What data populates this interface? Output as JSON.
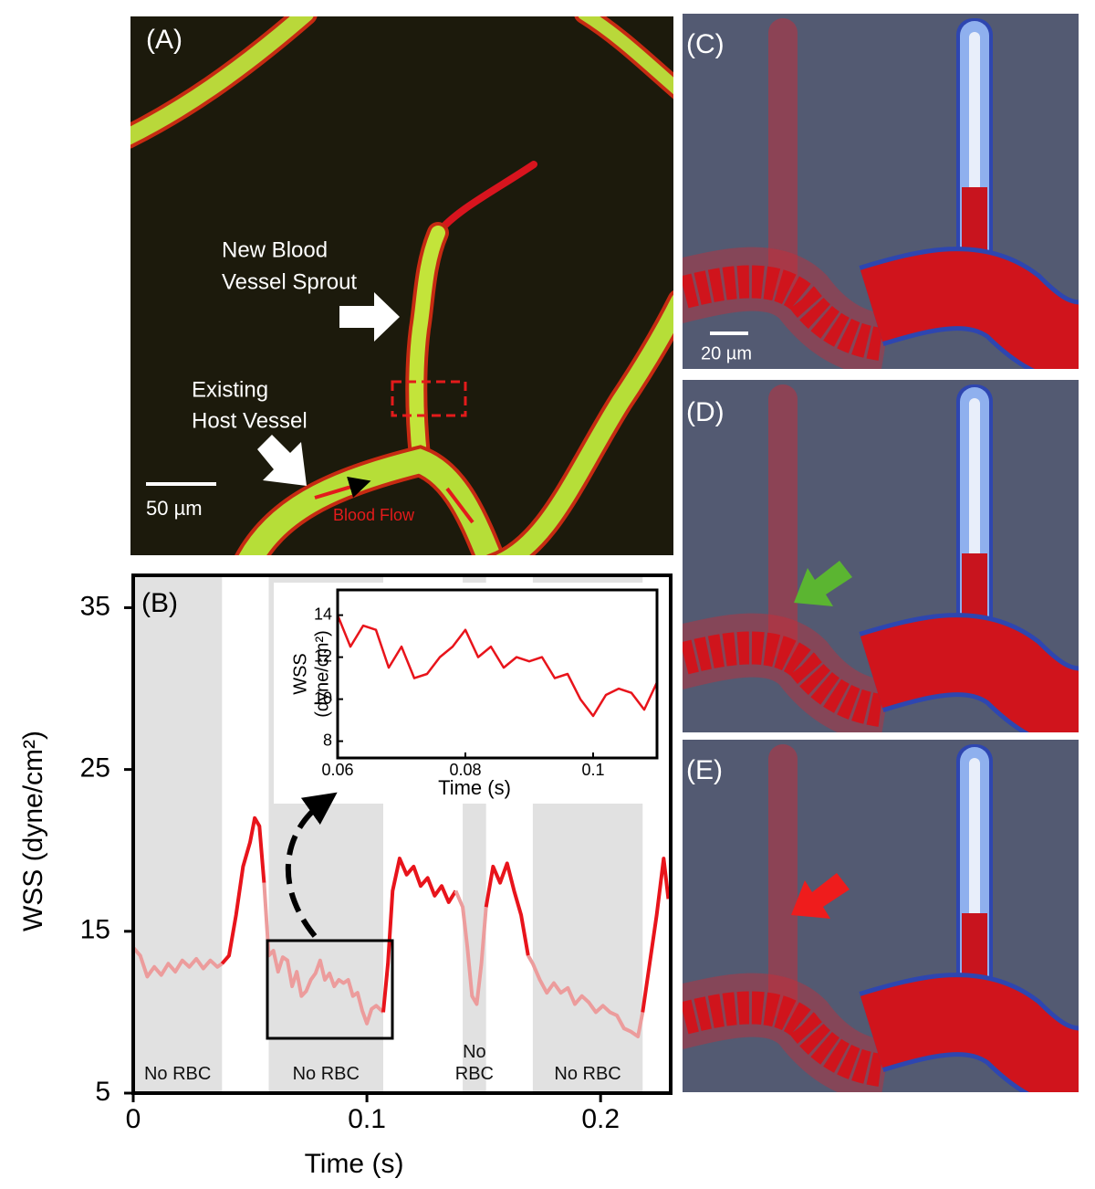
{
  "panel_a": {
    "label": "(A)",
    "sprout_label": [
      "New  Blood",
      "Vessel Sprout"
    ],
    "host_label": [
      "Existing",
      "Host Vessel"
    ],
    "scale_bar": "50 µm",
    "flow_label": "Blood Flow"
  },
  "chart_data": [
    {
      "type": "line",
      "title": "(B)",
      "xlabel": "Time (s)",
      "ylabel": "WSS (dyne/cm²)",
      "x": [
        0,
        0.003,
        0.006,
        0.009,
        0.012,
        0.015,
        0.018,
        0.021,
        0.024,
        0.027,
        0.03,
        0.033,
        0.036,
        0.038,
        0.041,
        0.044,
        0.047,
        0.05,
        0.052,
        0.054,
        0.056,
        0.058,
        0.06,
        0.062,
        0.064,
        0.066,
        0.068,
        0.07,
        0.072,
        0.074,
        0.076,
        0.078,
        0.08,
        0.082,
        0.084,
        0.086,
        0.088,
        0.09,
        0.092,
        0.094,
        0.096,
        0.098,
        0.1,
        0.102,
        0.104,
        0.107,
        0.109,
        0.111,
        0.114,
        0.117,
        0.12,
        0.123,
        0.126,
        0.129,
        0.132,
        0.135,
        0.138,
        0.141,
        0.143,
        0.145,
        0.147,
        0.149,
        0.151,
        0.154,
        0.157,
        0.16,
        0.163,
        0.166,
        0.169,
        0.171,
        0.174,
        0.177,
        0.18,
        0.183,
        0.186,
        0.189,
        0.192,
        0.195,
        0.198,
        0.201,
        0.204,
        0.207,
        0.21,
        0.213,
        0.216,
        0.218,
        0.221,
        0.224,
        0.227,
        0.229
      ],
      "values": [
        14,
        13.5,
        12.2,
        12.8,
        12.3,
        13,
        12.5,
        13.2,
        12.8,
        13.3,
        12.7,
        13.2,
        12.8,
        13,
        13.5,
        16,
        19,
        20.5,
        22,
        21.5,
        18,
        13.5,
        13.8,
        12.5,
        13.4,
        13.2,
        11.6,
        12.5,
        11,
        11.3,
        12,
        12.4,
        13.2,
        12,
        12.4,
        11.6,
        12,
        11.8,
        12,
        11,
        11.2,
        10.1,
        9.3,
        10.2,
        10.4,
        10,
        13,
        17.5,
        19.5,
        18.5,
        19,
        17.8,
        18.3,
        17.2,
        17.8,
        16.8,
        17.5,
        16.5,
        14,
        11,
        10.5,
        13,
        16.5,
        19,
        18,
        19.2,
        17.5,
        16,
        13.5,
        13,
        12,
        11.2,
        11.8,
        11.2,
        11.5,
        10.5,
        11,
        10.6,
        10,
        10.4,
        10,
        9.8,
        9,
        8.8,
        8.5,
        10,
        13,
        16,
        19.5,
        17
      ],
      "color": "#e8141b",
      "region_color": "#ec9c9c",
      "region_fill": "#e1e1e1",
      "regions": [
        {
          "start": 0,
          "end": 0.038,
          "label": "No RBC"
        },
        {
          "start": 0.058,
          "end": 0.107,
          "label": "No RBC"
        },
        {
          "start": 0.141,
          "end": 0.151,
          "label": "No RBC"
        },
        {
          "start": 0.171,
          "end": 0.218,
          "label": "No RBC"
        }
      ],
      "xlim": [
        0,
        0.23
      ],
      "ylim": [
        5,
        37
      ],
      "xticks": [
        0,
        0.1,
        0.2
      ],
      "yticks": [
        5,
        15,
        25,
        35
      ]
    },
    {
      "type": "line",
      "xlabel": "Time (s)",
      "ylabel": [
        "WSS",
        "(dyne/cm²)"
      ],
      "x": [
        0.06,
        0.062,
        0.064,
        0.066,
        0.068,
        0.07,
        0.072,
        0.074,
        0.076,
        0.078,
        0.08,
        0.082,
        0.084,
        0.086,
        0.088,
        0.09,
        0.092,
        0.094,
        0.096,
        0.098,
        0.1,
        0.102,
        0.104,
        0.106,
        0.108,
        0.11
      ],
      "values": [
        14,
        12.5,
        13.5,
        13.3,
        11.5,
        12.5,
        11,
        11.2,
        12,
        12.5,
        13.3,
        12,
        12.5,
        11.5,
        12,
        11.8,
        12,
        11,
        11.2,
        10,
        9.2,
        10.2,
        10.5,
        10.3,
        9.5,
        10.8
      ],
      "color": "#e8141b",
      "xlim": [
        0.06,
        0.11
      ],
      "ylim": [
        7.2,
        15.2
      ],
      "xticks": [
        0.06,
        0.08,
        0.1
      ],
      "yticks": [
        8,
        10,
        12,
        14
      ]
    }
  ],
  "panel_c": {
    "label": "(C)",
    "scale_bar": "20 µm"
  },
  "panel_d": {
    "label": "(D)"
  },
  "panel_e": {
    "label": "(E)"
  }
}
